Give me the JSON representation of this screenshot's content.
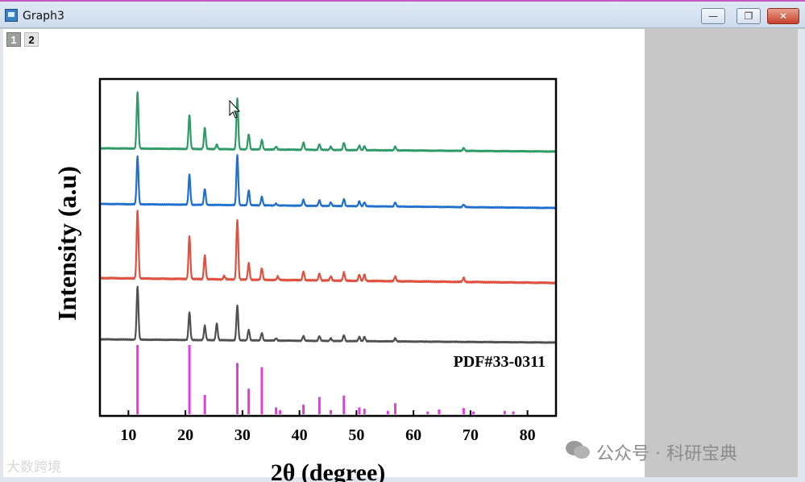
{
  "window": {
    "title": "Graph3",
    "minimize_glyph": "—",
    "restore_glyph": "❐",
    "close_glyph": "✕",
    "accent_color": "#c45ac4"
  },
  "layers": [
    {
      "label": "1",
      "active": false
    },
    {
      "label": "2",
      "active": true
    }
  ],
  "watermarks": {
    "left": "大数跨境",
    "right": "公众号 · 科研宝典"
  },
  "chart_data": {
    "type": "line",
    "title": "",
    "xlabel": "2θ (degree)",
    "ylabel": "Intensity (a.u)",
    "xlim": [
      5,
      85
    ],
    "ylim": [
      0,
      1
    ],
    "x_ticks": [
      10,
      20,
      30,
      40,
      50,
      60,
      70,
      80
    ],
    "grid": false,
    "annotation": "PDF#33-0311",
    "reference": {
      "name": "PDF#33-0311",
      "color": "#e23ce0",
      "peaks": [
        {
          "x": 11.6,
          "h": 1.0
        },
        {
          "x": 20.7,
          "h": 1.0
        },
        {
          "x": 23.4,
          "h": 0.28
        },
        {
          "x": 29.1,
          "h": 0.74
        },
        {
          "x": 31.1,
          "h": 0.37
        },
        {
          "x": 33.4,
          "h": 0.68
        },
        {
          "x": 35.9,
          "h": 0.1
        },
        {
          "x": 36.6,
          "h": 0.06
        },
        {
          "x": 40.7,
          "h": 0.14
        },
        {
          "x": 43.5,
          "h": 0.25
        },
        {
          "x": 45.5,
          "h": 0.06
        },
        {
          "x": 47.8,
          "h": 0.27
        },
        {
          "x": 50.5,
          "h": 0.1
        },
        {
          "x": 51.4,
          "h": 0.08
        },
        {
          "x": 55.5,
          "h": 0.05
        },
        {
          "x": 56.8,
          "h": 0.16
        },
        {
          "x": 62.5,
          "h": 0.04
        },
        {
          "x": 64.5,
          "h": 0.07
        },
        {
          "x": 68.8,
          "h": 0.09
        },
        {
          "x": 70.5,
          "h": 0.04
        },
        {
          "x": 76.0,
          "h": 0.05
        },
        {
          "x": 77.5,
          "h": 0.04
        }
      ]
    },
    "series": [
      {
        "color": "#2e9a66",
        "peaks": [
          {
            "x": 11.6,
            "h": 1.0
          },
          {
            "x": 20.7,
            "h": 0.6
          },
          {
            "x": 23.4,
            "h": 0.38
          },
          {
            "x": 25.5,
            "h": 0.08
          },
          {
            "x": 29.1,
            "h": 0.9
          },
          {
            "x": 31.1,
            "h": 0.27
          },
          {
            "x": 33.4,
            "h": 0.17
          },
          {
            "x": 35.9,
            "h": 0.05
          },
          {
            "x": 40.7,
            "h": 0.13
          },
          {
            "x": 43.5,
            "h": 0.1
          },
          {
            "x": 45.5,
            "h": 0.06
          },
          {
            "x": 47.8,
            "h": 0.13
          },
          {
            "x": 50.5,
            "h": 0.08
          },
          {
            "x": 51.4,
            "h": 0.07
          },
          {
            "x": 56.8,
            "h": 0.07
          },
          {
            "x": 68.8,
            "h": 0.05
          }
        ]
      },
      {
        "color": "#1f6fd0",
        "peaks": [
          {
            "x": 11.6,
            "h": 0.95
          },
          {
            "x": 20.7,
            "h": 0.6
          },
          {
            "x": 23.4,
            "h": 0.32
          },
          {
            "x": 29.1,
            "h": 1.0
          },
          {
            "x": 31.1,
            "h": 0.3
          },
          {
            "x": 33.4,
            "h": 0.17
          },
          {
            "x": 35.9,
            "h": 0.04
          },
          {
            "x": 40.7,
            "h": 0.12
          },
          {
            "x": 43.5,
            "h": 0.11
          },
          {
            "x": 45.5,
            "h": 0.07
          },
          {
            "x": 47.8,
            "h": 0.14
          },
          {
            "x": 50.5,
            "h": 0.1
          },
          {
            "x": 51.4,
            "h": 0.08
          },
          {
            "x": 56.8,
            "h": 0.08
          },
          {
            "x": 68.8,
            "h": 0.05
          }
        ]
      },
      {
        "color": "#e0503e",
        "peaks": [
          {
            "x": 11.6,
            "h": 1.0
          },
          {
            "x": 20.7,
            "h": 0.63
          },
          {
            "x": 23.4,
            "h": 0.35
          },
          {
            "x": 26.8,
            "h": 0.05
          },
          {
            "x": 29.1,
            "h": 0.88
          },
          {
            "x": 31.1,
            "h": 0.24
          },
          {
            "x": 33.4,
            "h": 0.17
          },
          {
            "x": 36.2,
            "h": 0.05
          },
          {
            "x": 40.7,
            "h": 0.13
          },
          {
            "x": 43.5,
            "h": 0.1
          },
          {
            "x": 45.5,
            "h": 0.06
          },
          {
            "x": 47.8,
            "h": 0.12
          },
          {
            "x": 50.5,
            "h": 0.09
          },
          {
            "x": 51.4,
            "h": 0.09
          },
          {
            "x": 56.8,
            "h": 0.07
          },
          {
            "x": 68.8,
            "h": 0.06
          }
        ]
      },
      {
        "color": "#505050",
        "peaks": [
          {
            "x": 11.6,
            "h": 1.0
          },
          {
            "x": 20.7,
            "h": 0.52
          },
          {
            "x": 23.4,
            "h": 0.27
          },
          {
            "x": 25.5,
            "h": 0.31
          },
          {
            "x": 29.1,
            "h": 0.65
          },
          {
            "x": 31.1,
            "h": 0.2
          },
          {
            "x": 33.4,
            "h": 0.14
          },
          {
            "x": 35.9,
            "h": 0.04
          },
          {
            "x": 40.7,
            "h": 0.09
          },
          {
            "x": 43.5,
            "h": 0.09
          },
          {
            "x": 45.5,
            "h": 0.05
          },
          {
            "x": 47.8,
            "h": 0.11
          },
          {
            "x": 50.5,
            "h": 0.08
          },
          {
            "x": 51.4,
            "h": 0.08
          },
          {
            "x": 56.8,
            "h": 0.06
          }
        ]
      }
    ]
  }
}
